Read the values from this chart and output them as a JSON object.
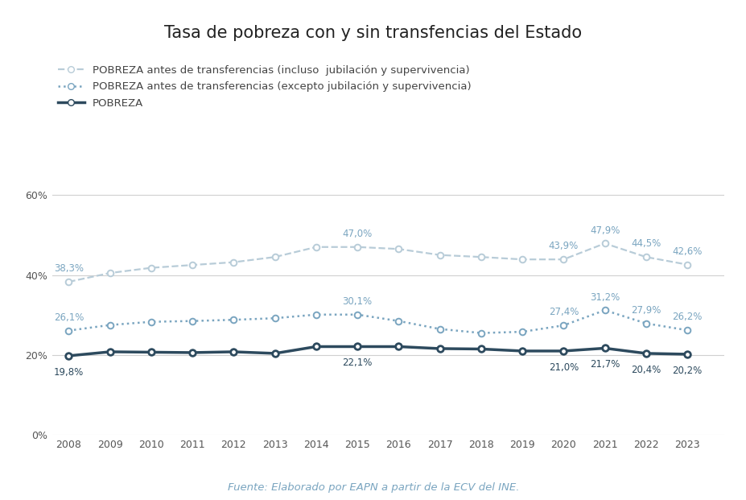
{
  "title": "Tasa de pobreza con y sin transfencias del Estado",
  "years": [
    2008,
    2009,
    2010,
    2011,
    2012,
    2013,
    2014,
    2015,
    2016,
    2017,
    2018,
    2019,
    2020,
    2021,
    2022,
    2023
  ],
  "series_incluso": [
    38.3,
    40.5,
    41.8,
    42.5,
    43.2,
    44.5,
    47.0,
    47.0,
    46.5,
    45.0,
    44.5,
    43.9,
    43.9,
    47.9,
    44.5,
    42.6
  ],
  "series_excepto": [
    26.1,
    27.5,
    28.3,
    28.5,
    28.8,
    29.2,
    30.1,
    30.1,
    28.5,
    26.5,
    25.5,
    25.8,
    27.4,
    31.2,
    27.9,
    26.2
  ],
  "series_pobreza": [
    19.8,
    20.8,
    20.7,
    20.6,
    20.8,
    20.4,
    22.1,
    22.1,
    22.1,
    21.6,
    21.5,
    21.0,
    21.0,
    21.7,
    20.4,
    20.2
  ],
  "label_incluso": "POBREZA antes de transferencias (incluso  jubilación y supervivencia)",
  "label_excepto": "POBREZA antes de transferencias (excepto jubilación y supervivencia)",
  "label_pobreza": "POBREZA",
  "color_incluso": "#b8ccd8",
  "color_excepto": "#7aa5c0",
  "color_pobreza": "#2d4a5e",
  "source": "Fuente: Elaborado por EAPN a partir de la ECV del INE.",
  "bg_color": "#ffffff",
  "annotated_incluso": {
    "2008": 38.3,
    "2015": 47.0,
    "2020": 43.9,
    "2021": 47.9,
    "2022": 44.5,
    "2023": 42.6
  },
  "annotated_excepto": {
    "2008": 26.1,
    "2015": 30.1,
    "2020": 27.4,
    "2021": 31.2,
    "2022": 27.9,
    "2023": 26.2
  },
  "annotated_pobreza": {
    "2008": 19.8,
    "2015": 22.1,
    "2020": 21.0,
    "2021": 21.7,
    "2022": 20.4,
    "2023": 20.2
  },
  "ylim": [
    0,
    65
  ],
  "yticks": [
    0,
    20,
    40,
    60
  ]
}
